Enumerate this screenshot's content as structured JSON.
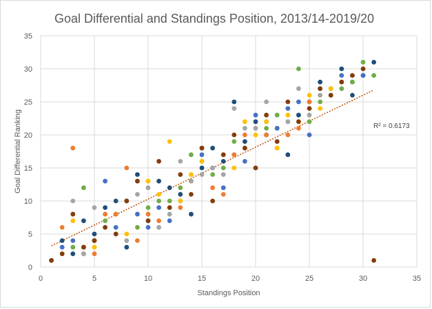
{
  "chart_data": {
    "type": "scatter",
    "title": "Goal Differential and Standings Position, 2013/14-2019/20",
    "xlabel": "Standings Position",
    "ylabel": "Goal Differential Ranking",
    "xlim": [
      0,
      35
    ],
    "ylim": [
      0,
      35
    ],
    "xticks": [
      0,
      5,
      10,
      15,
      20,
      25,
      30,
      35
    ],
    "yticks": [
      0,
      5,
      10,
      15,
      20,
      25,
      30,
      35
    ],
    "grid": true,
    "legend": "none",
    "trendline": {
      "type": "linear",
      "from": [
        1,
        3.2
      ],
      "to": [
        31,
        26.8
      ],
      "color": "#c55a11",
      "label": "R² = 0.6173"
    },
    "series": [
      {
        "color": "#1f4e79",
        "points": [
          [
            1,
            1
          ],
          [
            2,
            4
          ],
          [
            3,
            2
          ],
          [
            4,
            7
          ],
          [
            5,
            5
          ],
          [
            6,
            9
          ],
          [
            7,
            10
          ],
          [
            8,
            3
          ],
          [
            9,
            14
          ],
          [
            10,
            7
          ],
          [
            11,
            13
          ],
          [
            12,
            12
          ],
          [
            13,
            11
          ],
          [
            14,
            8
          ],
          [
            15,
            15
          ],
          [
            16,
            18
          ],
          [
            17,
            16
          ],
          [
            18,
            25
          ],
          [
            19,
            19
          ],
          [
            20,
            22
          ],
          [
            21,
            20
          ],
          [
            22,
            21
          ],
          [
            23,
            17
          ],
          [
            24,
            23
          ],
          [
            25,
            25
          ],
          [
            26,
            28
          ],
          [
            27,
            27
          ],
          [
            28,
            30
          ],
          [
            29,
            26
          ],
          [
            30,
            29
          ],
          [
            31,
            31
          ]
        ]
      },
      {
        "color": "#4472c4",
        "points": [
          [
            2,
            3
          ],
          [
            3,
            4
          ],
          [
            4,
            2
          ],
          [
            5,
            4
          ],
          [
            6,
            13
          ],
          [
            7,
            6
          ],
          [
            8,
            10
          ],
          [
            9,
            8
          ],
          [
            10,
            6
          ],
          [
            11,
            9
          ],
          [
            12,
            7
          ],
          [
            13,
            10
          ],
          [
            14,
            13
          ],
          [
            15,
            17
          ],
          [
            16,
            15
          ],
          [
            17,
            12
          ],
          [
            18,
            17
          ],
          [
            19,
            16
          ],
          [
            20,
            23
          ],
          [
            21,
            22
          ],
          [
            22,
            21
          ],
          [
            23,
            24
          ],
          [
            24,
            25
          ],
          [
            25,
            20
          ],
          [
            26,
            27
          ],
          [
            27,
            26
          ],
          [
            28,
            29
          ],
          [
            29,
            28
          ],
          [
            30,
            29
          ]
        ]
      },
      {
        "color": "#70ad47",
        "points": [
          [
            3,
            3
          ],
          [
            4,
            12
          ],
          [
            5,
            4
          ],
          [
            6,
            7
          ],
          [
            7,
            8
          ],
          [
            8,
            10
          ],
          [
            9,
            6
          ],
          [
            10,
            9
          ],
          [
            11,
            10
          ],
          [
            12,
            10
          ],
          [
            13,
            12
          ],
          [
            14,
            17
          ],
          [
            15,
            16
          ],
          [
            16,
            14
          ],
          [
            17,
            15
          ],
          [
            18,
            19
          ],
          [
            19,
            18
          ],
          [
            20,
            21
          ],
          [
            21,
            21
          ],
          [
            22,
            23
          ],
          [
            23,
            22
          ],
          [
            24,
            30
          ],
          [
            25,
            22
          ],
          [
            26,
            25
          ],
          [
            27,
            26
          ],
          [
            28,
            27
          ],
          [
            29,
            28
          ],
          [
            30,
            31
          ],
          [
            31,
            29
          ]
        ]
      },
      {
        "color": "#ed7d31",
        "points": [
          [
            2,
            6
          ],
          [
            3,
            18
          ],
          [
            4,
            3
          ],
          [
            5,
            2
          ],
          [
            6,
            8
          ],
          [
            7,
            8
          ],
          [
            8,
            15
          ],
          [
            9,
            4
          ],
          [
            10,
            8
          ],
          [
            11,
            7
          ],
          [
            12,
            9
          ],
          [
            13,
            9
          ],
          [
            14,
            14
          ],
          [
            15,
            18
          ],
          [
            16,
            12
          ],
          [
            17,
            11
          ],
          [
            18,
            17
          ],
          [
            19,
            20
          ],
          [
            20,
            15
          ],
          [
            21,
            20
          ],
          [
            22,
            18
          ],
          [
            23,
            20
          ],
          [
            24,
            21
          ],
          [
            25,
            25
          ],
          [
            26,
            26
          ]
        ]
      },
      {
        "color": "#ffc000",
        "points": [
          [
            3,
            7
          ],
          [
            5,
            3
          ],
          [
            8,
            5
          ],
          [
            10,
            13
          ],
          [
            11,
            11
          ],
          [
            12,
            19
          ],
          [
            13,
            10
          ],
          [
            14,
            14
          ],
          [
            15,
            16
          ],
          [
            17,
            17
          ],
          [
            18,
            15
          ],
          [
            19,
            22
          ],
          [
            20,
            20
          ],
          [
            21,
            22
          ],
          [
            22,
            18
          ],
          [
            23,
            23
          ],
          [
            24,
            22
          ],
          [
            25,
            26
          ],
          [
            26,
            24
          ],
          [
            27,
            27
          ],
          [
            28,
            28
          ]
        ]
      },
      {
        "color": "#a5a5a5",
        "points": [
          [
            3,
            10
          ],
          [
            4,
            2
          ],
          [
            5,
            9
          ],
          [
            6,
            6
          ],
          [
            7,
            5
          ],
          [
            8,
            4
          ],
          [
            9,
            11
          ],
          [
            10,
            12
          ],
          [
            11,
            6
          ],
          [
            12,
            8
          ],
          [
            13,
            16
          ],
          [
            14,
            13
          ],
          [
            15,
            14
          ],
          [
            16,
            15
          ],
          [
            17,
            14
          ],
          [
            18,
            24
          ],
          [
            19,
            21
          ],
          [
            20,
            21
          ],
          [
            21,
            25
          ],
          [
            22,
            19
          ],
          [
            23,
            22
          ],
          [
            24,
            27
          ],
          [
            25,
            23
          ],
          [
            26,
            26
          ]
        ]
      },
      {
        "color": "#843c0c",
        "points": [
          [
            1,
            1
          ],
          [
            2,
            2
          ],
          [
            3,
            8
          ],
          [
            4,
            3
          ],
          [
            5,
            4
          ],
          [
            6,
            6
          ],
          [
            7,
            5
          ],
          [
            8,
            10
          ],
          [
            9,
            13
          ],
          [
            10,
            7
          ],
          [
            11,
            16
          ],
          [
            12,
            9
          ],
          [
            13,
            14
          ],
          [
            14,
            11
          ],
          [
            15,
            18
          ],
          [
            16,
            10
          ],
          [
            17,
            17
          ],
          [
            18,
            20
          ],
          [
            19,
            18
          ],
          [
            20,
            15
          ],
          [
            21,
            23
          ],
          [
            22,
            19
          ],
          [
            23,
            25
          ],
          [
            24,
            22
          ],
          [
            25,
            24
          ],
          [
            26,
            27
          ],
          [
            27,
            26
          ],
          [
            28,
            28
          ],
          [
            29,
            29
          ],
          [
            30,
            30
          ],
          [
            31,
            1
          ]
        ]
      }
    ]
  }
}
